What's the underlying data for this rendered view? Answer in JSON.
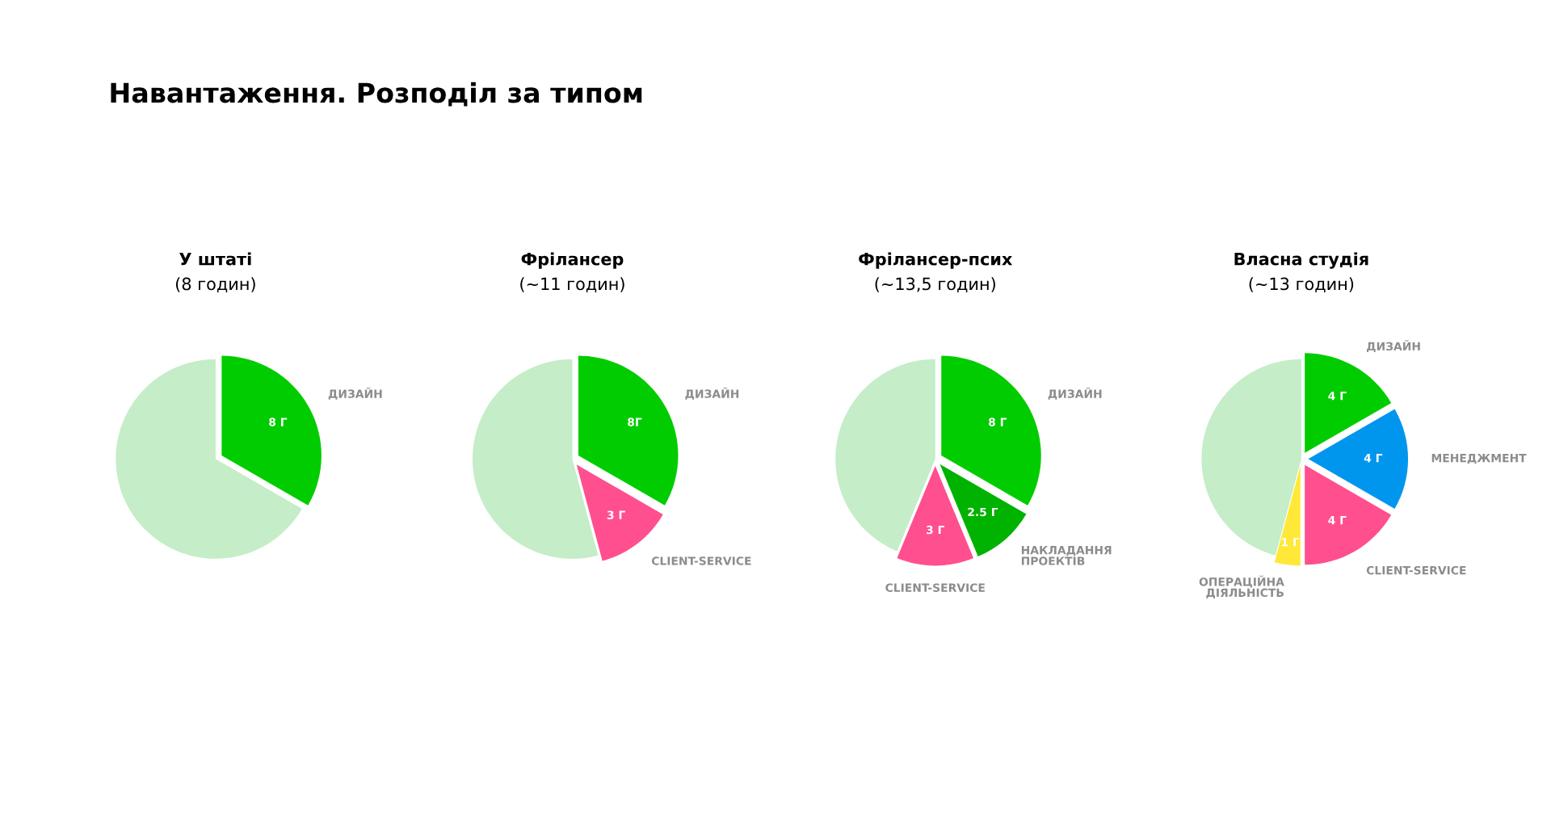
{
  "chart_data": [
    {
      "type": "pie",
      "title": "У штаті",
      "subtitle": "(8 годин)",
      "annotations": [
        "Навантаження. Розподіл за типом"
      ],
      "categories": [
        "ДИЗАЙН",
        null
      ],
      "values": [
        8,
        16
      ],
      "colors": [
        "#00cc00",
        "#c5edc8"
      ],
      "value_labels": [
        "8 Г",
        null
      ]
    },
    {
      "type": "pie",
      "title": "Фрілансер",
      "subtitle": "(~11 годин)",
      "categories": [
        "ДИЗАЙН",
        "CLIENT-SERVICE",
        null
      ],
      "values": [
        8,
        3,
        13
      ],
      "colors": [
        "#00cc00",
        "#ff4f8e",
        "#c5edc8"
      ],
      "value_labels": [
        "8Г",
        "3 Г",
        null
      ]
    },
    {
      "type": "pie",
      "title": "Фрілансер-псих",
      "subtitle": "(~13,5 годин)",
      "categories": [
        "ДИЗАЙН",
        "НАКЛАДАННЯ\nПРОЕКТІВ",
        "CLIENT-SERVICE",
        null
      ],
      "values": [
        8,
        2.5,
        3,
        10.5
      ],
      "colors": [
        "#00cc00",
        "#00b300",
        "#ff4f8e",
        "#c5edc8"
      ],
      "value_labels": [
        "8 Г",
        "2.5 Г",
        "3 Г",
        null
      ]
    },
    {
      "type": "pie",
      "title": "Власна студія",
      "subtitle": "(~13 годин)",
      "categories": [
        "ДИЗАЙН",
        "МЕНЕДЖМЕНТ",
        "CLIENT-SERVICE",
        "ОПЕРАЦІЙНА\nДІЯЛЬНІСТЬ",
        null
      ],
      "values": [
        4,
        4,
        4,
        1,
        11
      ],
      "colors": [
        "#00cc00",
        "#0096ee",
        "#ff4f8e",
        "#ffe838",
        "#c5edc8"
      ],
      "value_labels": [
        "4 Г",
        "4 Г",
        "4 Г",
        "1 Г",
        null
      ]
    }
  ]
}
